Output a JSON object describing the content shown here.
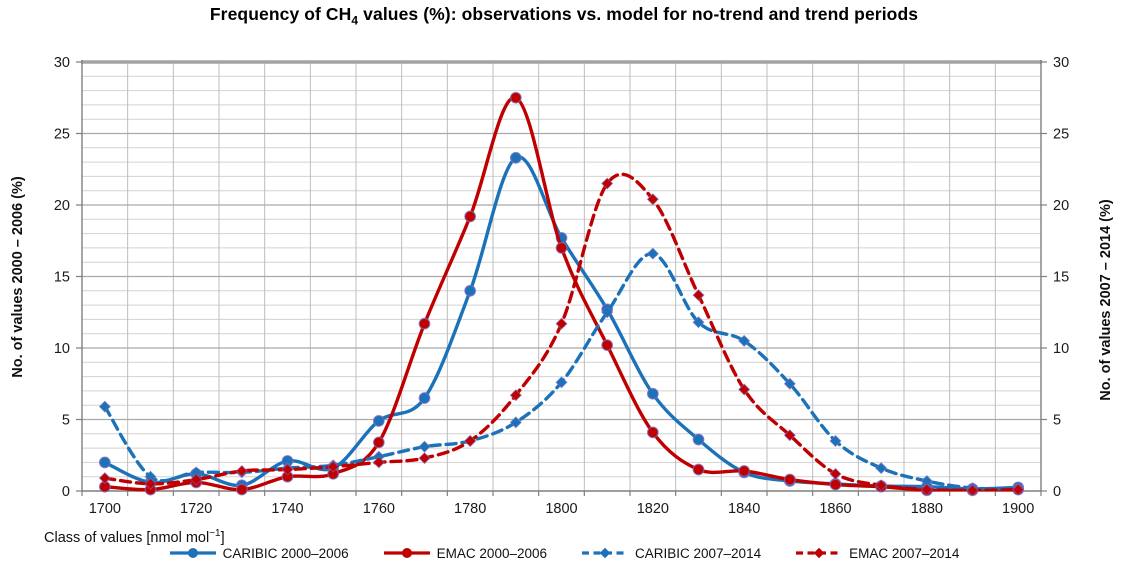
{
  "title": {
    "prefix": "Frequency of CH",
    "sub": "4",
    "suffix": " values (%): observations vs. model for no-trend and trend periods"
  },
  "x_axis": {
    "label_main": "Class of values [nmol mol",
    "label_sup": "−1",
    "label_close": "]",
    "tick_labels": [
      "1700",
      "1720",
      "1740",
      "1760",
      "1780",
      "1800",
      "1820",
      "1840",
      "1860",
      "1880",
      "1900"
    ]
  },
  "y_axis_left": {
    "label": "No. of values 2000 – 2006 (%)",
    "tick_labels": [
      "0",
      "5",
      "10",
      "15",
      "20",
      "25",
      "30"
    ]
  },
  "y_axis_right": {
    "label": "No. of values 2007 – 2014 (%)",
    "tick_labels": [
      "0",
      "5",
      "10",
      "15",
      "20",
      "25",
      "30"
    ]
  },
  "chart_data": {
    "type": "line",
    "title": "Frequency of CH4 values (%): observations vs. model for no-trend and trend periods",
    "xlabel": "Class of values [nmol mol-1]",
    "ylabel_left": "No. of values 2000 - 2006 (%)",
    "ylabel_right": "No. of values 2007 - 2014 (%)",
    "ylim": [
      0,
      30
    ],
    "x_plot_range": [
      1695,
      1905
    ],
    "grid": {
      "y_minor_step": 1,
      "y_major_step": 5,
      "x_gridline_step": 10,
      "x_gridlines_on_category_boundaries": true
    },
    "legend_position": "bottom",
    "x": [
      1700,
      1710,
      1720,
      1730,
      1740,
      1750,
      1760,
      1770,
      1780,
      1790,
      1800,
      1810,
      1820,
      1830,
      1840,
      1850,
      1860,
      1870,
      1880,
      1890,
      1900
    ],
    "series": [
      {
        "name": "CARIBIC 2000–2006",
        "color": "#1C72B9",
        "style": "solid",
        "marker": "circle",
        "axis": "left",
        "values": [
          2.0,
          0.6,
          1.2,
          0.4,
          2.1,
          1.6,
          4.9,
          6.5,
          14.0,
          23.3,
          17.7,
          12.7,
          6.8,
          3.6,
          1.3,
          0.7,
          0.5,
          0.35,
          0.3,
          0.15,
          0.25
        ]
      },
      {
        "name": "EMAC 2000–2006",
        "color": "#C00000",
        "style": "solid",
        "marker": "circle",
        "axis": "left",
        "values": [
          0.3,
          0.1,
          0.6,
          0.1,
          1.0,
          1.2,
          3.4,
          11.7,
          19.2,
          27.5,
          17.0,
          10.2,
          4.1,
          1.5,
          1.4,
          0.8,
          0.45,
          0.3,
          0.05,
          0.05,
          0.1
        ]
      },
      {
        "name": "CARIBIC 2007–2014",
        "color": "#1C72B9",
        "style": "dashed",
        "marker": "diamond",
        "axis": "right",
        "values": [
          5.9,
          1.0,
          1.3,
          1.3,
          1.6,
          1.8,
          2.4,
          3.1,
          3.5,
          4.8,
          7.6,
          12.5,
          16.6,
          11.8,
          10.5,
          7.5,
          3.5,
          1.6,
          0.7,
          0.2,
          0.15
        ]
      },
      {
        "name": "EMAC 2007–2014",
        "color": "#C00000",
        "style": "dashed",
        "marker": "diamond",
        "axis": "right",
        "values": [
          0.9,
          0.5,
          0.8,
          1.4,
          1.5,
          1.7,
          2.0,
          2.3,
          3.5,
          6.7,
          11.7,
          21.5,
          20.4,
          13.7,
          7.1,
          3.9,
          1.2,
          0.4,
          0.1,
          0.05,
          0.1
        ]
      }
    ]
  }
}
